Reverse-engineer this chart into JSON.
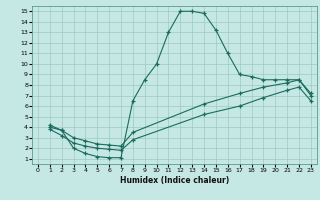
{
  "xlabel": "Humidex (Indice chaleur)",
  "ylabel": "",
  "bg_color": "#c5e8e5",
  "grid_color": "#b0d0cc",
  "line_color": "#1a6b5e",
  "xlim": [
    -0.5,
    23.5
  ],
  "ylim": [
    0.5,
    15.5
  ],
  "xticks": [
    0,
    1,
    2,
    3,
    4,
    5,
    6,
    7,
    8,
    9,
    10,
    11,
    12,
    13,
    14,
    15,
    16,
    17,
    18,
    19,
    20,
    21,
    22,
    23
  ],
  "yticks": [
    1,
    2,
    3,
    4,
    5,
    6,
    7,
    8,
    9,
    10,
    11,
    12,
    13,
    14,
    15
  ],
  "curve1_x": [
    1,
    2,
    3,
    4,
    5,
    6,
    7,
    8,
    9,
    10,
    11,
    12,
    13,
    14,
    15,
    16,
    17,
    18,
    19,
    20,
    21,
    22,
    23
  ],
  "curve1_y": [
    4.0,
    3.7,
    2.0,
    1.5,
    1.2,
    1.1,
    1.1,
    6.5,
    8.5,
    10.0,
    13.0,
    15.0,
    15.0,
    14.8,
    13.2,
    11.0,
    9.0,
    8.8,
    8.5,
    8.5,
    8.5,
    8.5,
    7.0
  ],
  "curve2_x": [
    1,
    2,
    3,
    4,
    5,
    6,
    7,
    8,
    14,
    17,
    19,
    21,
    22,
    23
  ],
  "curve2_y": [
    4.2,
    3.7,
    3.0,
    2.7,
    2.4,
    2.3,
    2.2,
    3.5,
    6.2,
    7.2,
    7.8,
    8.2,
    8.5,
    7.2
  ],
  "curve3_x": [
    1,
    2,
    3,
    4,
    5,
    6,
    7,
    8,
    14,
    17,
    19,
    21,
    22,
    23
  ],
  "curve3_y": [
    3.8,
    3.2,
    2.5,
    2.2,
    2.0,
    1.9,
    1.8,
    2.8,
    5.2,
    6.0,
    6.8,
    7.5,
    7.8,
    6.5
  ]
}
